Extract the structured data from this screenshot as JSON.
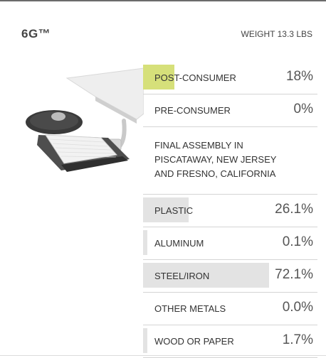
{
  "header": {
    "title": "6G™",
    "weight": "WEIGHT 13.3 LBS"
  },
  "image": {
    "icon": "keyboard-tray-product-image"
  },
  "recycled": [
    {
      "label": "POST-CONSUMER",
      "value": "18%",
      "fraction": 0.18,
      "fill_color": "#d6e07a"
    },
    {
      "label": "PRE-CONSUMER",
      "value": "0%",
      "fraction": 0.0,
      "fill_color": "#e3e3e3"
    }
  ],
  "assembly": {
    "lines": [
      "FINAL ASSEMBLY IN",
      "PISCATAWAY, NEW JERSEY",
      "AND FRESNO, CALIFORNIA"
    ]
  },
  "materials": [
    {
      "label": "PLASTIC",
      "value": "26.1%",
      "fraction": 0.261,
      "fill_color": "#e3e3e3"
    },
    {
      "label": "ALUMINUM",
      "value": "0.1%",
      "fraction": 0.001,
      "fill_color": "#e3e3e3"
    },
    {
      "label": "STEEL/IRON",
      "value": "72.1%",
      "fraction": 0.721,
      "fill_color": "#e3e3e3"
    },
    {
      "label": "OTHER METALS",
      "value": "0.0%",
      "fraction": 0.0,
      "fill_color": "#e3e3e3"
    },
    {
      "label": "WOOD OR PAPER",
      "value": "1.7%",
      "fraction": 0.017,
      "fill_color": "#e3e3e3"
    }
  ]
}
